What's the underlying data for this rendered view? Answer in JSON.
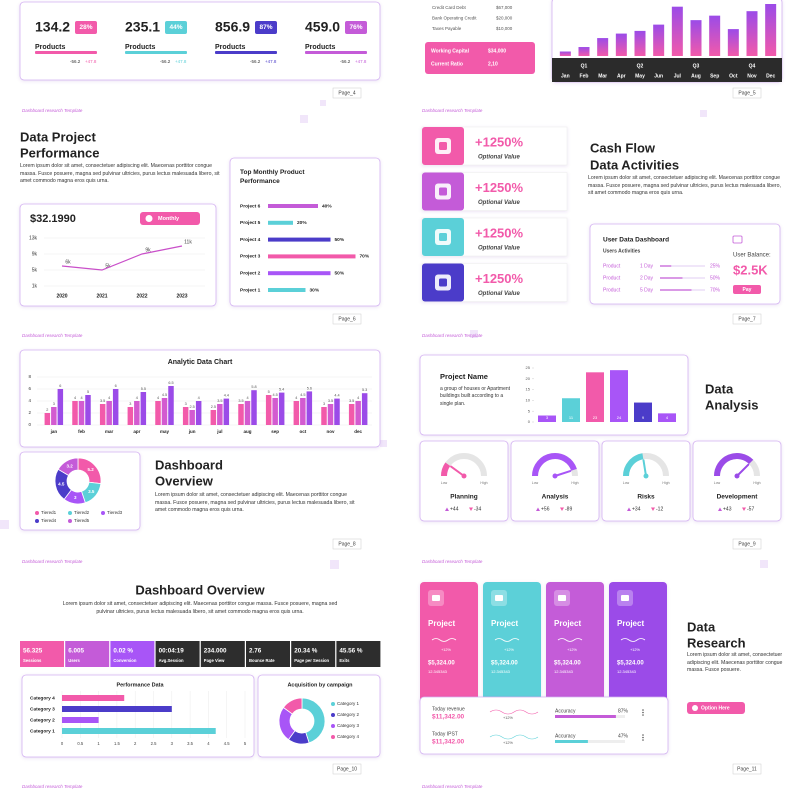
{
  "footer": "Dashboard research Template",
  "paragraph": "Lorem ipsum dolor sit amet, consectetuer adipiscing elit. Maecenas porttitor congue massa. Fusce posuere, magna sed pulvinar ultricies, purus lectus malesuada libero, sit amet commodo magna eros quis urna.",
  "slide4": {
    "page": "Page_4",
    "stats": [
      {
        "value": "134.2",
        "badge": "28%",
        "label": "Products",
        "down": "-56.2",
        "up": "+47.8"
      },
      {
        "value": "235.1",
        "badge": "44%",
        "label": "Products",
        "down": "-56.2",
        "up": "+47.8"
      },
      {
        "value": "856.9",
        "badge": "87%",
        "label": "Products",
        "down": "-56.2",
        "up": "+47.8"
      },
      {
        "value": "459.0",
        "badge": "76%",
        "label": "Products",
        "down": "-56.2",
        "up": "+47.8"
      }
    ]
  },
  "slide5": {
    "page": "Page_5",
    "items": [
      {
        "label": "Credit Card Debt",
        "value": "$67,000"
      },
      {
        "label": "Bank Operating Credit",
        "value": "$20,000"
      },
      {
        "label": "Taxes Payable",
        "value": "$10,000"
      }
    ],
    "highlight": [
      {
        "label": "Working Capital",
        "value": "$34,000"
      },
      {
        "label": "Current Ratio",
        "value": "2,10"
      }
    ],
    "chart": {
      "type": "bar",
      "quarters": [
        "Q1",
        "Q2",
        "Q3",
        "Q4"
      ],
      "categories": [
        "Jan",
        "Feb",
        "Mar",
        "Apr",
        "May",
        "Jun",
        "Jul",
        "Aug",
        "Sep",
        "Oct",
        "Nov",
        "Dec"
      ],
      "values": [
        5,
        10,
        20,
        25,
        28,
        35,
        55,
        40,
        45,
        30,
        50,
        58
      ]
    }
  },
  "slide6": {
    "page": "Page_6",
    "title": [
      "Data Project",
      "Performance"
    ],
    "line_chart": {
      "type": "line",
      "title": "$32.1990",
      "button": "Monthly",
      "categories": [
        "2020",
        "2021",
        "2022",
        "2023"
      ],
      "values": [
        6,
        5,
        9,
        11
      ],
      "value_labels": [
        "6k",
        "5k",
        "9k",
        "11k"
      ],
      "color": "#c94fc9",
      "ylim": [
        1,
        13
      ],
      "yticks": [
        {
          "value": 13,
          "label": "13k"
        },
        {
          "value": 9,
          "label": "9k"
        },
        {
          "value": 5,
          "label": "5k"
        },
        {
          "value": 1,
          "label": "1k"
        }
      ]
    },
    "bar_chart": {
      "type": "bar",
      "title": "Top Monthly Product Performance",
      "categories": [
        "Project 6",
        "Project 5",
        "Project 4",
        "Project 3",
        "Project 2",
        "Project 1"
      ],
      "values": [
        40,
        20,
        50,
        70,
        50,
        30
      ],
      "value_labels": [
        "40%",
        "20%",
        "50%",
        "70%",
        "50%",
        "30%"
      ],
      "colors": [
        "#c45bd8",
        "#5bd0d8",
        "#4b3cc9",
        "#f25aaa",
        "#a855f7",
        "#5bd0d8"
      ]
    }
  },
  "slide7": {
    "page": "Page_7",
    "title": [
      "Cash Flow",
      "Data Activities"
    ],
    "tiles": [
      {
        "value": "+1250%",
        "label": "Optional Value"
      },
      {
        "value": "+1250%",
        "label": "Optional Value"
      },
      {
        "value": "+1250%",
        "label": "Optional Value"
      },
      {
        "value": "+1250%",
        "label": "Optional Value"
      }
    ],
    "card": {
      "title": "User Data Dashboard",
      "subtitle": "Users Activities",
      "balance_label": "User Balance:",
      "balance": "$2.5K",
      "button": "Pay",
      "rows": [
        {
          "product": "Product",
          "period": "1 Day",
          "value": 25,
          "value_label": "25%"
        },
        {
          "product": "Product",
          "period": "2 Day",
          "value": 50,
          "value_label": "50%"
        },
        {
          "product": "Product",
          "period": "5 Day",
          "value": 70,
          "value_label": "70%"
        }
      ]
    }
  },
  "slide8": {
    "page": "Page_8",
    "title": [
      "Dashboard",
      "Overview"
    ],
    "bar_chart": {
      "type": "bar",
      "title": "Analytic Data Chart",
      "categories": [
        "jan",
        "feb",
        "mar",
        "apr",
        "may",
        "jun",
        "jul",
        "aug",
        "sep",
        "oct",
        "nov",
        "dec"
      ],
      "ylim": [
        0,
        8
      ],
      "yticks": [
        0,
        2,
        4,
        6,
        8
      ],
      "series": [
        {
          "color": "#f25aaa",
          "values": [
            2,
            4,
            3.5,
            3,
            4,
            3,
            2.5,
            3.5,
            5,
            4,
            3,
            3.5
          ]
        },
        {
          "color": "#d35bd0",
          "values": [
            3,
            4,
            4,
            4,
            4.5,
            2.5,
            3.5,
            4,
            4.5,
            4.5,
            3.5,
            4
          ]
        },
        {
          "color": "#9b4be8",
          "values": [
            6,
            5,
            6,
            5.5,
            6.5,
            4,
            4.4,
            5.8,
            5.4,
            5.6,
            4.4,
            5.3
          ]
        }
      ]
    },
    "donut": {
      "type": "pie",
      "categories": [
        "Tiered1",
        "Tiered2",
        "Tiered3",
        "Tiered4",
        "Tiered5"
      ],
      "values": [
        5.2,
        3.5,
        3,
        4.5,
        3.2
      ],
      "colors": [
        "#f25aaa",
        "#5bd0d8",
        "#a855f7",
        "#4b3cc9",
        "#c45bd8"
      ]
    }
  },
  "slide9": {
    "page": "Page_9",
    "title": [
      "Data",
      "Analysis"
    ],
    "project": {
      "title": "Project Name",
      "description": "a group of houses or Apartment buildings built according to a single plan."
    },
    "chart": {
      "type": "bar",
      "values": [
        3,
        11,
        23,
        24,
        9,
        4
      ],
      "ylim": [
        0,
        25
      ],
      "yticks": [
        0,
        5,
        10,
        15,
        20,
        25
      ],
      "colors": [
        "#a855f7",
        "#5bd0d8",
        "#f25aaa",
        "#a855f7",
        "#4b3cc9",
        "#a855f7"
      ]
    },
    "low": "Low",
    "high": "High",
    "gauges": [
      {
        "name": "Planning",
        "value": 20,
        "up": "+44",
        "down": "-34",
        "color": "#f25aaa"
      },
      {
        "name": "Analysis",
        "value": 90,
        "up": "+56",
        "down": "-89",
        "color": "#a855f7"
      },
      {
        "name": "Risks",
        "value": 45,
        "up": "+34",
        "down": "-12",
        "color": "#5bd0d8"
      },
      {
        "name": "Development",
        "value": 75,
        "up": "+43",
        "down": "-57",
        "color": "#9b4be8"
      }
    ]
  },
  "slide10": {
    "page": "Page_10",
    "title": "Dashboard Overview",
    "kpis": [
      {
        "value": "56.325",
        "label": "Sessions"
      },
      {
        "value": "6.005",
        "label": "Users"
      },
      {
        "value": "0.02 %",
        "label": "Conversion"
      },
      {
        "value": "00:04:19",
        "label": "Avg.Session"
      },
      {
        "value": "234.000",
        "label": "Page View"
      },
      {
        "value": "2.76",
        "label": "Bounce Rate"
      },
      {
        "value": "20.34 %",
        "label": "Page per Session"
      },
      {
        "value": "45.56 %",
        "label": "Exits"
      }
    ],
    "performance": {
      "type": "bar",
      "title": "Performance Data",
      "categories": [
        "Category 4",
        "Category 3",
        "Category 2",
        "Category 1"
      ],
      "values": [
        1.7,
        3,
        1,
        4.2
      ],
      "colors": [
        "#f25aaa",
        "#4b3cc9",
        "#a855f7",
        "#5bd0d8"
      ],
      "xlim": [
        0,
        5
      ],
      "xticks": [
        0,
        0.5,
        1,
        1.5,
        2,
        2.5,
        3,
        3.5,
        4,
        4.5,
        5
      ]
    },
    "acquisition": {
      "type": "pie",
      "title": "Acquisition by campaign",
      "categories": [
        "Category 1",
        "Category 2",
        "Category 3",
        "Category 4"
      ],
      "values": [
        45,
        15,
        25,
        15
      ],
      "colors": [
        "#5bd0d8",
        "#4b3cc9",
        "#a855f7",
        "#f25aaa"
      ]
    }
  },
  "slide11": {
    "page": "Page_11",
    "title": [
      "Data",
      "Research"
    ],
    "paragraph": "Lorem ipsum dolor sit amet, consectetuer adipiscing elit. Maecenas porttitor congue massa. Fusce posuere.",
    "button": "Option Here",
    "tiles": [
      {
        "title": "Project",
        "change": "+12%",
        "amount": "$5,324.00",
        "sub": "12.345343"
      },
      {
        "title": "Project",
        "change": "+12%",
        "amount": "$5,324.00",
        "sub": "12.345343"
      },
      {
        "title": "Project",
        "change": "+12%",
        "amount": "$5,324.00",
        "sub": "12.345343"
      },
      {
        "title": "Project",
        "change": "+12%",
        "amount": "$5,324.00",
        "sub": "12.345343"
      }
    ],
    "rows": [
      {
        "label": "Today revenue",
        "amount": "$11,342.00",
        "change": "+12%",
        "metric": "Accuracy",
        "value": 87,
        "value_label": "87%",
        "color": "#c45bd8"
      },
      {
        "label": "Today IPST",
        "amount": "$11,342.00",
        "change": "+12%",
        "metric": "Accuracy",
        "value": 47,
        "value_label": "47%",
        "color": "#5bd0d8"
      }
    ]
  }
}
